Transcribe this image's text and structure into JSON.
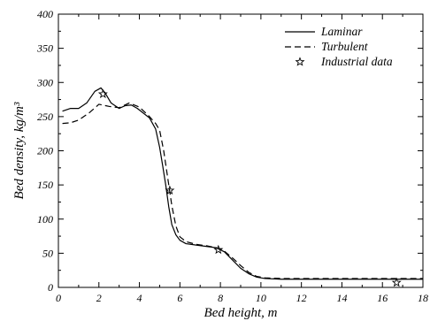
{
  "chart_data": {
    "type": "line",
    "xlabel": "Bed height,  m",
    "ylabel": "Bed density,  kg/m³",
    "xlim": [
      0,
      18
    ],
    "ylim": [
      0,
      400
    ],
    "xticks": [
      0,
      2,
      4,
      6,
      8,
      10,
      12,
      14,
      16,
      18
    ],
    "yticks": [
      0,
      50,
      100,
      150,
      200,
      250,
      300,
      350,
      400
    ],
    "grid": false,
    "legend_position": "top-right",
    "series": [
      {
        "name": "Laminar",
        "style": "solid",
        "color": "#000000",
        "x": [
          0.2,
          0.6,
          1.0,
          1.4,
          1.8,
          2.1,
          2.3,
          2.6,
          3.0,
          3.3,
          3.6,
          3.9,
          4.2,
          4.5,
          4.8,
          5.0,
          5.15,
          5.3,
          5.45,
          5.6,
          5.8,
          6.0,
          6.3,
          6.8,
          7.3,
          7.8,
          8.2,
          8.6,
          9.0,
          9.4,
          9.8,
          10.2,
          11.0,
          12.0,
          14.0,
          16.0,
          18.0
        ],
        "y": [
          258,
          262,
          262,
          270,
          287,
          292,
          285,
          270,
          262,
          266,
          267,
          262,
          255,
          248,
          232,
          205,
          178,
          150,
          118,
          92,
          77,
          69,
          64,
          62,
          60,
          58,
          52,
          40,
          28,
          20,
          15,
          13,
          12,
          12,
          12,
          12,
          12
        ]
      },
      {
        "name": "Turbulent",
        "style": "dashed",
        "color": "#000000",
        "x": [
          0.2,
          0.6,
          1.0,
          1.5,
          2.0,
          2.5,
          3.0,
          3.5,
          4.0,
          4.5,
          4.8,
          5.0,
          5.2,
          5.4,
          5.6,
          5.8,
          6.0,
          6.3,
          6.8,
          7.3,
          7.8,
          8.2,
          8.6,
          9.0,
          9.4,
          9.8,
          10.2,
          11.0,
          12.0,
          14.0,
          16.0,
          18.0
        ],
        "y": [
          240,
          241,
          245,
          255,
          268,
          265,
          263,
          270,
          264,
          250,
          240,
          230,
          200,
          160,
          120,
          90,
          74,
          67,
          63,
          61,
          58,
          53,
          43,
          32,
          22,
          16,
          14,
          13,
          13,
          13,
          13,
          13
        ]
      },
      {
        "name": "Industrial data",
        "style": "markers",
        "marker": "star",
        "color": "#000000",
        "x": [
          2.2,
          5.5,
          7.9,
          16.7
        ],
        "y": [
          283,
          142,
          55,
          7
        ]
      }
    ]
  }
}
